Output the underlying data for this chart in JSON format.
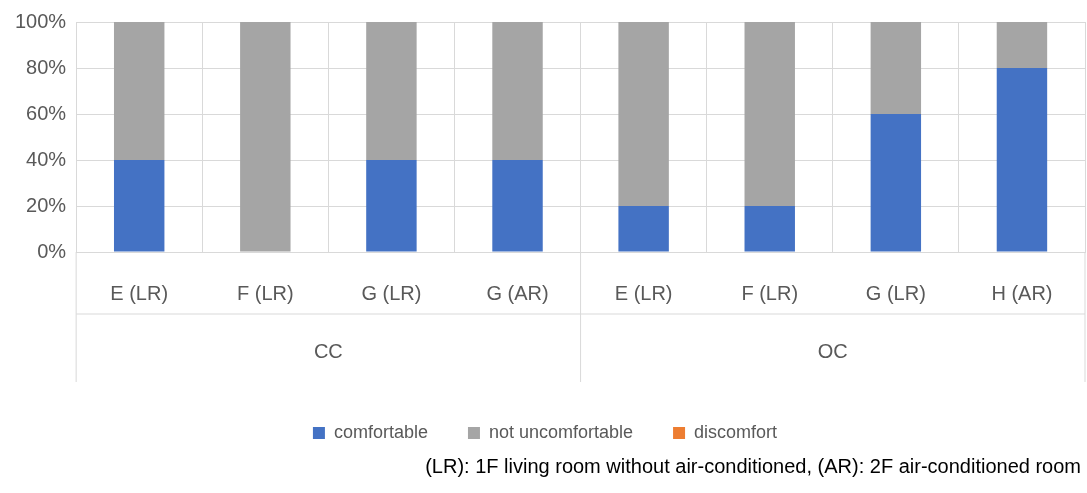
{
  "chart_data": {
    "type": "bar",
    "stacked": true,
    "categories": [
      "E (LR)",
      "F (LR)",
      "G (LR)",
      "G (AR)",
      "E (LR)",
      "F (LR)",
      "G (LR)",
      "H (AR)"
    ],
    "series": [
      {
        "name": "comfortable",
        "color": "#4472c4",
        "values": [
          40,
          0,
          40,
          40,
          20,
          20,
          60,
          80
        ]
      },
      {
        "name": "not uncomfortable",
        "color": "#a5a5a5",
        "values": [
          60,
          100,
          60,
          60,
          80,
          80,
          40,
          20
        ]
      },
      {
        "name": "discomfort",
        "color": "#ed7d31",
        "values": [
          0,
          0,
          0,
          0,
          0,
          0,
          0,
          0
        ]
      }
    ],
    "ylim": [
      0,
      100
    ],
    "yticks": [
      {
        "value": 0,
        "label": "0%"
      },
      {
        "value": 20,
        "label": "20%"
      },
      {
        "value": 40,
        "label": "40%"
      },
      {
        "value": 60,
        "label": "60%"
      },
      {
        "value": 80,
        "label": "80%"
      },
      {
        "value": 100,
        "label": "100%"
      }
    ],
    "grid": true,
    "legend": "bottom",
    "annotations": [
      "CC",
      "OC",
      "(LR): 1F living room without air-conditioned, (AR): 2F air-conditioned room"
    ]
  }
}
